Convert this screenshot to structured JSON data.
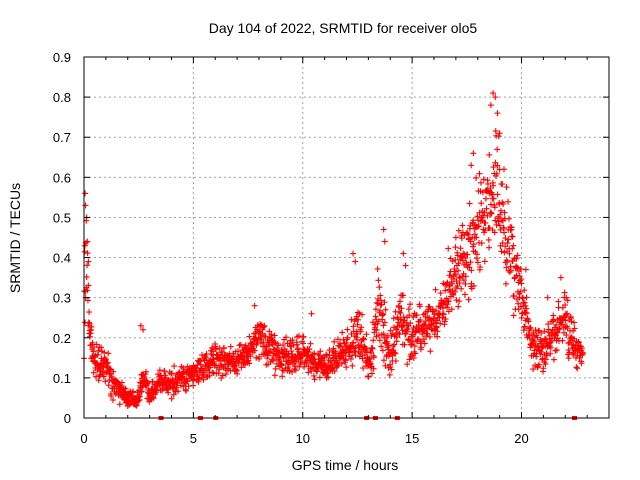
{
  "chart_data": {
    "type": "scatter",
    "title": "Day 104 of 2022, SRMTID for receiver olo5",
    "xlabel": "GPS time / hours",
    "ylabel": "SRMTID / TECUs",
    "xlim": [
      0,
      24
    ],
    "ylim": [
      0,
      0.9
    ],
    "grid": true,
    "marker": "plus",
    "color": "#ff0000",
    "xticks": [
      0,
      5,
      10,
      15,
      20
    ],
    "xtick_labels": [
      "0",
      "5",
      "10",
      "15",
      "20"
    ],
    "yticks": [
      0,
      0.1,
      0.2,
      0.3,
      0.4,
      0.5,
      0.6,
      0.7,
      0.8,
      0.9
    ],
    "ytick_labels": [
      "0",
      "0.1",
      "0.2",
      "0.3",
      "0.4",
      "0.5",
      "0.6",
      "0.7",
      "0.8",
      "0.9"
    ],
    "series": [
      {
        "name": "SRMTID",
        "profile": [
          {
            "t": 0.0,
            "m": 0.3,
            "s": 0.12
          },
          {
            "t": 0.1,
            "m": 0.38,
            "s": 0.12
          },
          {
            "t": 0.3,
            "m": 0.18,
            "s": 0.05
          },
          {
            "t": 0.6,
            "m": 0.13,
            "s": 0.04
          },
          {
            "t": 1.0,
            "m": 0.14,
            "s": 0.04
          },
          {
            "t": 1.3,
            "m": 0.09,
            "s": 0.03
          },
          {
            "t": 2.0,
            "m": 0.05,
            "s": 0.02
          },
          {
            "t": 2.5,
            "m": 0.05,
            "s": 0.02
          },
          {
            "t": 2.7,
            "m": 0.1,
            "s": 0.05
          },
          {
            "t": 3.0,
            "m": 0.05,
            "s": 0.02
          },
          {
            "t": 3.5,
            "m": 0.1,
            "s": 0.03
          },
          {
            "t": 4.0,
            "m": 0.08,
            "s": 0.03
          },
          {
            "t": 5.0,
            "m": 0.11,
            "s": 0.03
          },
          {
            "t": 6.0,
            "m": 0.15,
            "s": 0.03
          },
          {
            "t": 7.0,
            "m": 0.14,
            "s": 0.03
          },
          {
            "t": 8.0,
            "m": 0.2,
            "s": 0.04
          },
          {
            "t": 9.0,
            "m": 0.15,
            "s": 0.04
          },
          {
            "t": 10.0,
            "m": 0.16,
            "s": 0.04
          },
          {
            "t": 11.0,
            "m": 0.13,
            "s": 0.03
          },
          {
            "t": 12.0,
            "m": 0.17,
            "s": 0.04
          },
          {
            "t": 12.5,
            "m": 0.2,
            "s": 0.07
          },
          {
            "t": 13.0,
            "m": 0.13,
            "s": 0.04
          },
          {
            "t": 13.5,
            "m": 0.25,
            "s": 0.09
          },
          {
            "t": 14.0,
            "m": 0.16,
            "s": 0.05
          },
          {
            "t": 14.5,
            "m": 0.25,
            "s": 0.07
          },
          {
            "t": 15.0,
            "m": 0.2,
            "s": 0.06
          },
          {
            "t": 16.0,
            "m": 0.24,
            "s": 0.04
          },
          {
            "t": 17.0,
            "m": 0.35,
            "s": 0.08
          },
          {
            "t": 18.0,
            "m": 0.47,
            "s": 0.1
          },
          {
            "t": 18.8,
            "m": 0.58,
            "s": 0.13
          },
          {
            "t": 19.5,
            "m": 0.4,
            "s": 0.1
          },
          {
            "t": 20.0,
            "m": 0.3,
            "s": 0.07
          },
          {
            "t": 20.5,
            "m": 0.18,
            "s": 0.05
          },
          {
            "t": 21.0,
            "m": 0.17,
            "s": 0.05
          },
          {
            "t": 21.5,
            "m": 0.2,
            "s": 0.05
          },
          {
            "t": 22.0,
            "m": 0.26,
            "s": 0.06
          },
          {
            "t": 22.5,
            "m": 0.17,
            "s": 0.04
          },
          {
            "t": 22.8,
            "m": 0.15,
            "s": 0.03
          }
        ],
        "spikes": [
          [
            0.05,
            0.56
          ],
          [
            0.07,
            0.53
          ],
          [
            0.12,
            0.5
          ],
          [
            0.15,
            0.44
          ],
          [
            0.2,
            0.39
          ],
          [
            2.6,
            0.23
          ],
          [
            2.7,
            0.22
          ],
          [
            7.8,
            0.28
          ],
          [
            10.4,
            0.26
          ],
          [
            12.3,
            0.41
          ],
          [
            12.4,
            0.39
          ],
          [
            13.7,
            0.47
          ],
          [
            13.75,
            0.44
          ],
          [
            14.6,
            0.41
          ],
          [
            14.7,
            0.38
          ],
          [
            17.0,
            0.45
          ],
          [
            17.3,
            0.48
          ],
          [
            17.7,
            0.63
          ],
          [
            17.8,
            0.66
          ],
          [
            18.6,
            0.78
          ],
          [
            18.7,
            0.81
          ],
          [
            18.8,
            0.8
          ],
          [
            18.9,
            0.76
          ],
          [
            19.0,
            0.71
          ],
          [
            19.2,
            0.62
          ],
          [
            20.2,
            0.37
          ],
          [
            21.2,
            0.3
          ],
          [
            21.8,
            0.35
          ],
          [
            22.6,
            0.19
          ]
        ],
        "n_points": 1800,
        "x_range": [
          0,
          22.8
        ]
      }
    ],
    "zero_markers_x": [
      3.5,
      5.3,
      6.0,
      12.9,
      13.3,
      14.3,
      22.4
    ]
  }
}
